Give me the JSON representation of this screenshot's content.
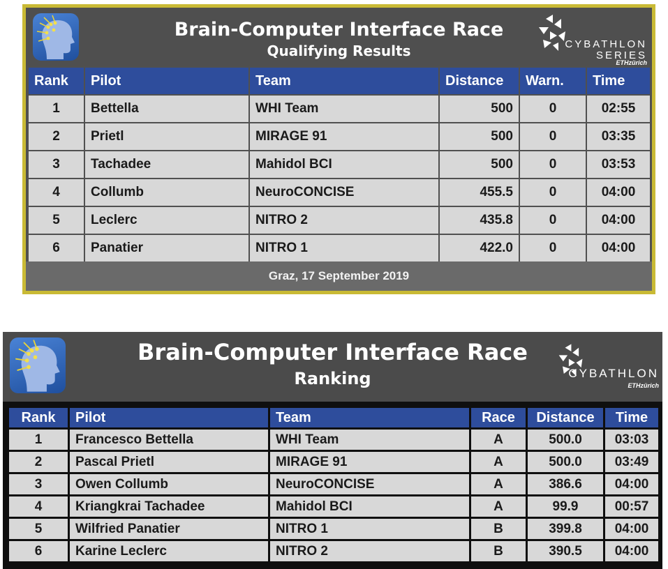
{
  "qualifying": {
    "title": "Brain-Computer Interface Race",
    "subtitle": "Qualifying Results",
    "brand_word": "CYBATHLON",
    "brand_series": "SERIES",
    "brand_sub": "ETHzürich",
    "columns": [
      "Rank",
      "Pilot",
      "Team",
      "Distance",
      "Warn.",
      "Time"
    ],
    "rows": [
      {
        "rank": "1",
        "pilot": "Bettella",
        "team": "WHI Team",
        "distance": "500",
        "warn": "0",
        "time": "02:55"
      },
      {
        "rank": "2",
        "pilot": "Prietl",
        "team": "MIRAGE 91",
        "distance": "500",
        "warn": "0",
        "time": "03:35"
      },
      {
        "rank": "3",
        "pilot": "Tachadee",
        "team": "Mahidol BCI",
        "distance": "500",
        "warn": "0",
        "time": "03:53"
      },
      {
        "rank": "4",
        "pilot": "Collumb",
        "team": "NeuroCONCISE",
        "distance": "455.5",
        "warn": "0",
        "time": "04:00"
      },
      {
        "rank": "5",
        "pilot": "Leclerc",
        "team": "NITRO 2",
        "distance": "435.8",
        "warn": "0",
        "time": "04:00"
      },
      {
        "rank": "6",
        "pilot": "Panatier",
        "team": "NITRO 1",
        "distance": "422.0",
        "warn": "0",
        "time": "04:00"
      }
    ],
    "footer": "Graz, 17 September 2019"
  },
  "ranking": {
    "title": "Brain-Computer Interface Race",
    "subtitle": "Ranking",
    "brand_word": "CYBATHLON",
    "brand_sub": "ETHzürich",
    "columns": [
      "Rank",
      "Pilot",
      "Team",
      "Race",
      "Distance",
      "Time"
    ],
    "rows": [
      {
        "rank": "1",
        "pilot": "Francesco Bettella",
        "team": "WHI Team",
        "race": "A",
        "distance": "500.0",
        "time": "03:03"
      },
      {
        "rank": "2",
        "pilot": "Pascal Prietl",
        "team": "MIRAGE 91",
        "race": "A",
        "distance": "500.0",
        "time": "03:49"
      },
      {
        "rank": "3",
        "pilot": "Owen Collumb",
        "team": "NeuroCONCISE",
        "race": "A",
        "distance": "386.6",
        "time": "04:00"
      },
      {
        "rank": "4",
        "pilot": "Kriangkrai Tachadee",
        "team": "Mahidol BCI",
        "race": "A",
        "distance": "99.9",
        "time": "00:57"
      },
      {
        "rank": "5",
        "pilot": "Wilfried Panatier",
        "team": "NITRO 1",
        "race": "B",
        "distance": "399.8",
        "time": "04:00"
      },
      {
        "rank": "6",
        "pilot": "Karine Leclerc",
        "team": "NITRO 2",
        "race": "B",
        "distance": "390.5",
        "time": "04:00"
      }
    ]
  },
  "colors": {
    "header_blue": "#2e4d9c",
    "cell_gray": "#d8d8d8",
    "frame_gold": "#c9ba35"
  },
  "icons": [
    "brain-head-logo-icon",
    "cybathlon-logo-icon"
  ]
}
